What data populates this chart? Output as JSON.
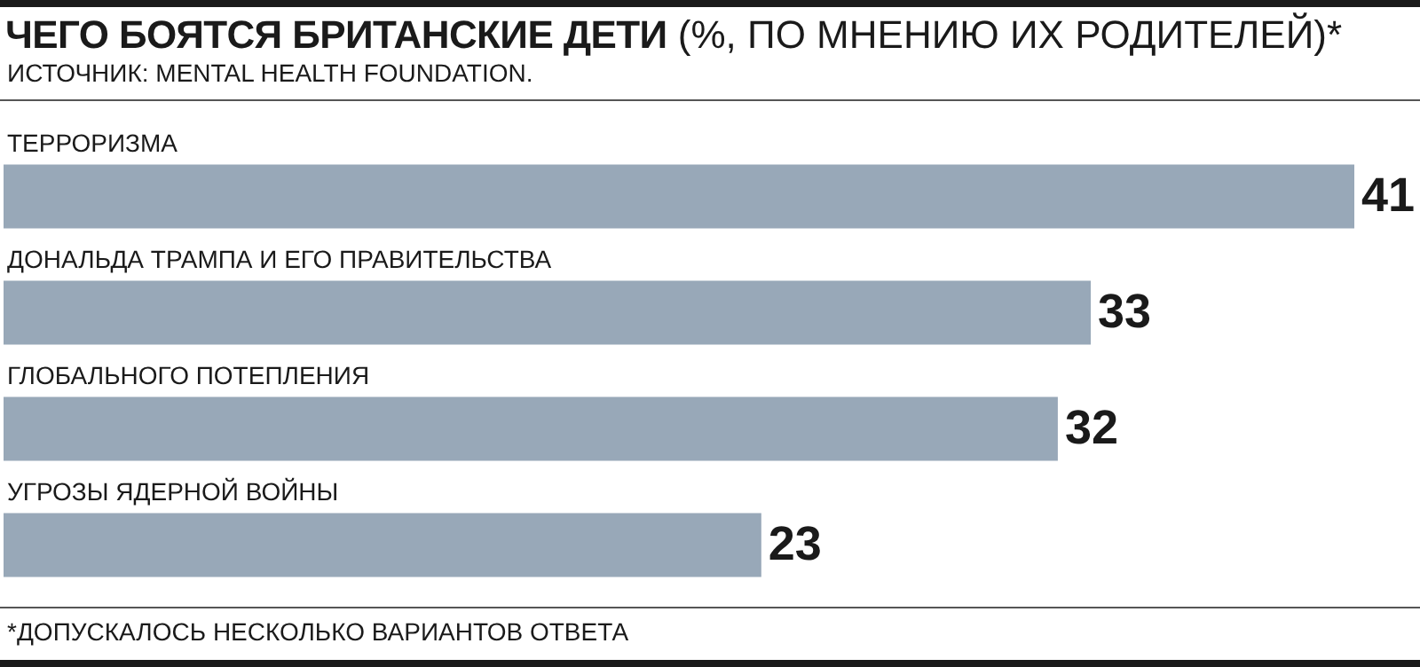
{
  "chart_data": {
    "type": "bar",
    "orientation": "horizontal",
    "title": "ЧЕГО БОЯТСЯ БРИТАНСКИЕ ДЕТИ",
    "subtitle": "(%, ПО МНЕНИЮ ИХ РОДИТЕЛЕЙ)*",
    "annotations": [
      "ИСТОЧНИК: MENTAL HEALTH FOUNDATION.",
      "*ДОПУСКАЛОСЬ НЕСКОЛЬКО ВАРИАНТОВ ОТВЕТА"
    ],
    "categories": [
      "ТЕРРОРИЗМА",
      "ДОНАЛЬДА ТРАМПА И ЕГО ПРАВИТЕЛЬСТВА",
      "ГЛОБАЛЬНОГО ПОТЕПЛЕНИЯ",
      "УГРОЗЫ ЯДЕРНОЙ ВОЙНЫ"
    ],
    "values": [
      41,
      33,
      32,
      23
    ],
    "color": "#98a8b8",
    "data_labels": true
  }
}
